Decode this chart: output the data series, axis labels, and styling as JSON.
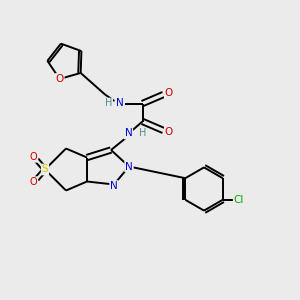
{
  "bg_color": "#ebebeb",
  "atom_colors": {
    "C": "#000000",
    "N": "#0000cc",
    "O": "#cc0000",
    "S": "#cccc00",
    "Cl": "#00aa00",
    "H": "#4a8f8f"
  },
  "bond_color": "#000000"
}
